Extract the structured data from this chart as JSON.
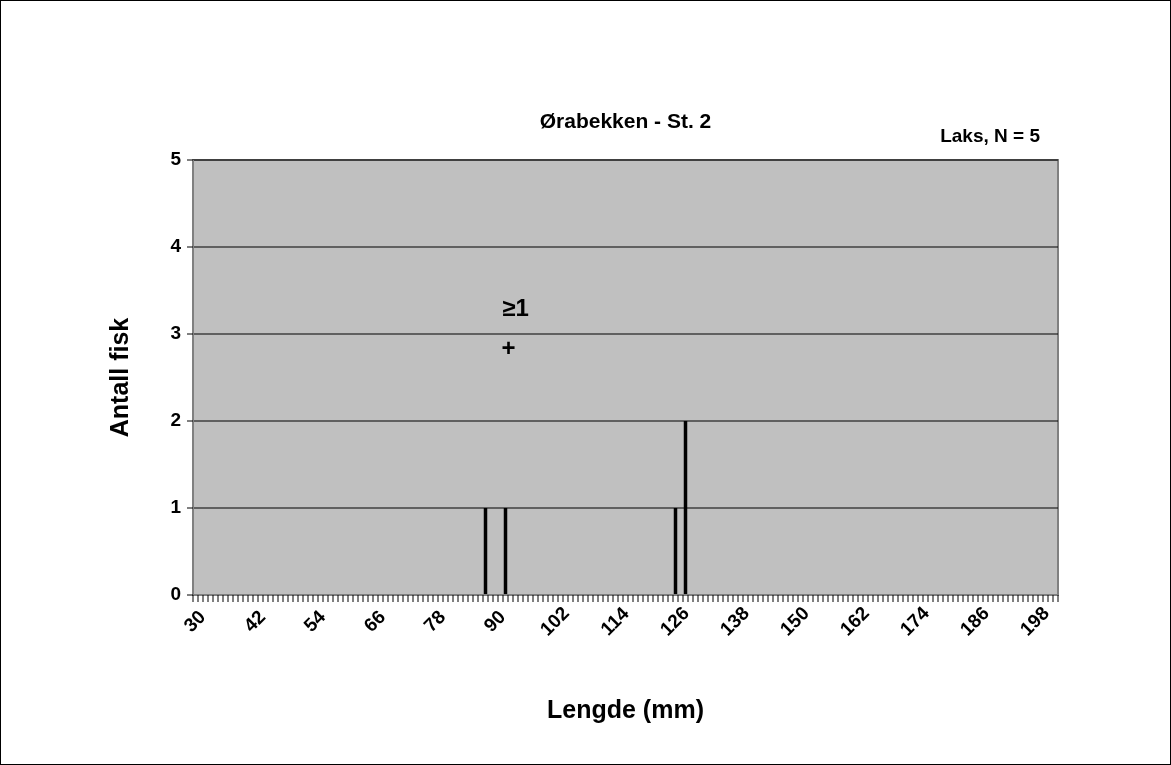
{
  "chart_data": {
    "type": "bar",
    "title": "Ørabekken - St. 2",
    "subtitle": "Laks, N = 5",
    "xlabel": "Lengde (mm)",
    "ylabel": "Antall fisk",
    "annotations": [
      "≥1",
      "+"
    ],
    "x": [
      88,
      92,
      126,
      128
    ],
    "values": [
      1,
      1,
      1,
      2
    ],
    "color": "#000000",
    "xlim": [
      29.5,
      202.5
    ],
    "xticks": [
      30,
      42,
      54,
      66,
      78,
      90,
      102,
      114,
      126,
      138,
      150,
      162,
      174,
      186,
      198
    ],
    "ylim": [
      0,
      5
    ],
    "yticks": [
      0,
      1,
      2,
      3,
      4,
      5
    ],
    "grid": "y"
  }
}
